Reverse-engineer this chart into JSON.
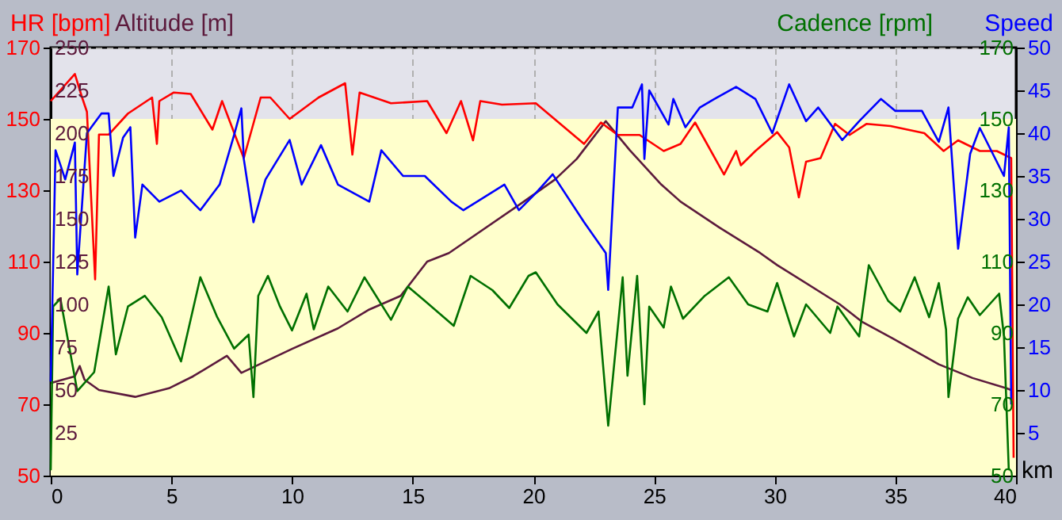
{
  "chart_data": {
    "type": "line",
    "xlabel": "km",
    "y3label": "HR [bpm]",
    "ylabel": "Altitude [m]",
    "y2label": "Speed",
    "annotations": [
      "Cadence [rpm]",
      "50",
      "70",
      "90",
      "110",
      "130",
      "150",
      "170"
    ],
    "xlim": [
      0,
      40
    ],
    "xticks": [
      0,
      5,
      10,
      15,
      20,
      25,
      30,
      35,
      40
    ],
    "y3lim": [
      50,
      170
    ],
    "y3ticks": [
      50,
      70,
      90,
      110,
      130,
      150,
      170
    ],
    "ylim": [
      0,
      250
    ],
    "yticks": [
      25,
      50,
      75,
      100,
      125,
      150,
      175,
      200,
      225,
      250
    ],
    "y2lim": [
      0,
      50
    ],
    "y2ticks": [
      5,
      10,
      15,
      20,
      25,
      30,
      35,
      40,
      45,
      50
    ],
    "grid": true,
    "line_style": "solid",
    "marker": "none",
    "bands": [
      {
        "axis": "y3",
        "from": 50,
        "to": 150,
        "color": "#ffffcc"
      }
    ],
    "series": [
      {
        "axis": "y",
        "color": "#5c1a3c",
        "x": [
          0,
          1,
          1.2,
          1.4,
          2,
          3.5,
          4.9,
          5.9,
          7.3,
          7.9,
          10,
          11.9,
          13.2,
          14.5,
          15.6,
          16.5,
          19.6,
          20.1,
          20.9,
          21.8,
          23.0,
          24.0,
          25.3,
          26.1,
          27.7,
          29.4,
          30.1,
          32.7,
          33.6,
          34.9,
          36.8,
          38.2,
          39.6,
          39.8
        ],
        "values": [
          54,
          58,
          64,
          56,
          50,
          46,
          51,
          58,
          70,
          60,
          74,
          86,
          97,
          105,
          125,
          130,
          160,
          165,
          173,
          185,
          207,
          190,
          170,
          160,
          145,
          130,
          123,
          100,
          90,
          80,
          65,
          57,
          51,
          50
        ]
      },
      {
        "axis": "y3",
        "color": "#ff0000",
        "x": [
          0,
          1.0,
          1.3,
          1.5,
          1.84,
          2.0,
          2.4,
          3.2,
          4.2,
          4.4,
          4.5,
          5.1,
          5.8,
          6.7,
          7.1,
          8.0,
          8.7,
          9.1,
          9.9,
          11.1,
          12.2,
          12.5,
          12.8,
          14.1,
          15.6,
          16.4,
          17.0,
          17.5,
          17.8,
          18.7,
          20.1,
          22.1,
          22.8,
          23.5,
          24.4,
          25.4,
          26.1,
          26.7,
          27.9,
          28.4,
          28.6,
          29.2,
          30.1,
          30.6,
          31.0,
          31.3,
          31.9,
          32.5,
          33.1,
          33.8,
          34.8,
          36.2,
          37.0,
          37.6,
          38.5,
          39.2,
          39.8,
          39.9
        ],
        "values": [
          155,
          162.6,
          156,
          152,
          105,
          145.6,
          145.6,
          151.5,
          156,
          143,
          155,
          157.4,
          157,
          147,
          155,
          139,
          156,
          156,
          150,
          156,
          160,
          140,
          157.4,
          154.4,
          155,
          146,
          155,
          144,
          155,
          154,
          154.4,
          143,
          149,
          145.5,
          145.5,
          141,
          143,
          149,
          134.4,
          141,
          137,
          141,
          146.3,
          142,
          128,
          138,
          139,
          148.6,
          145.5,
          148.6,
          148,
          146,
          141,
          144,
          141,
          141,
          139,
          55
        ]
      },
      {
        "axis": "y3",
        "color": "#007000",
        "x": [
          0,
          0.1,
          0.4,
          1.1,
          1.8,
          2.4,
          2.7,
          3.2,
          3.9,
          4.6,
          5.4,
          6.2,
          6.9,
          7.6,
          8.2,
          8.4,
          8.6,
          9.0,
          9.5,
          10.0,
          10.6,
          10.9,
          11.5,
          12.3,
          13.0,
          14.1,
          14.8,
          15.5,
          16.7,
          17.4,
          18.3,
          19.0,
          19.8,
          20.1,
          21.0,
          22.2,
          22.7,
          23.1,
          23.7,
          23.9,
          24.3,
          24.6,
          24.8,
          25.4,
          25.7,
          26.2,
          27.1,
          28.1,
          28.9,
          29.7,
          30.1,
          30.8,
          31.3,
          32.3,
          32.6,
          33.5,
          33.9,
          34.7,
          35.2,
          35.8,
          36.4,
          36.8,
          37.1,
          37.2,
          37.6,
          38.0,
          38.5,
          39.3,
          39.5,
          39.7
        ],
        "values": [
          51.5,
          97.4,
          99.6,
          73.7,
          79,
          103,
          84,
          97.4,
          100.4,
          94.4,
          82,
          105.6,
          94.4,
          85.6,
          89.5,
          72,
          100.4,
          106,
          97.4,
          90.7,
          101,
          91,
          103,
          96,
          105.6,
          93.7,
          103,
          99,
          92,
          106,
          102,
          97,
          106,
          107,
          98,
          90,
          96,
          64,
          105.6,
          78,
          106,
          70,
          97.4,
          91.5,
          103,
          94,
          100.4,
          105.6,
          98,
          96,
          104,
          89,
          98,
          90,
          97.4,
          89,
          109,
          99,
          96,
          105.6,
          94.4,
          104,
          91,
          72,
          94,
          100,
          95,
          101,
          89,
          51.5
        ]
      },
      {
        "axis": "y2",
        "color": "#0000ff",
        "x": [
          0,
          0.2,
          0.6,
          1.0,
          1.1,
          1.5,
          2.1,
          2.4,
          2.6,
          3.0,
          3.3,
          3.5,
          3.8,
          4.5,
          5.4,
          6.2,
          7.0,
          7.6,
          7.9,
          8.0,
          8.4,
          8.9,
          9.9,
          10.4,
          11.2,
          11.9,
          13.2,
          13.7,
          14.6,
          15.5,
          16.6,
          17.1,
          18.8,
          19.4,
          20.1,
          20.8,
          22.1,
          23.0,
          23.1,
          23.5,
          24.1,
          24.5,
          24.6,
          24.8,
          25.6,
          25.8,
          26.3,
          26.9,
          27.5,
          28.4,
          29.2,
          29.9,
          30.6,
          31.3,
          31.8,
          32.8,
          33.5,
          34.4,
          35.0,
          36.1,
          36.8,
          37.2,
          37.6,
          38.1,
          38.5,
          39.5,
          39.7,
          39.8
        ],
        "values": [
          11,
          38,
          34.6,
          38.9,
          23.5,
          40,
          42.3,
          42.3,
          35,
          39.5,
          40.7,
          27.8,
          34,
          32,
          33.3,
          31,
          34,
          39.8,
          42.9,
          37,
          29.6,
          34.6,
          39.2,
          34,
          38.6,
          34,
          32,
          38,
          35,
          35,
          32,
          31,
          34,
          31,
          33,
          35.2,
          29.6,
          26,
          21.7,
          43,
          43,
          45.7,
          37,
          45,
          41,
          44,
          40.7,
          43,
          44,
          45.4,
          44,
          40,
          45.7,
          41.4,
          43,
          39.2,
          41.4,
          44,
          42.6,
          42.6,
          39,
          43,
          26.5,
          37.6,
          40.6,
          35,
          40.7,
          8.3
        ]
      }
    ]
  }
}
